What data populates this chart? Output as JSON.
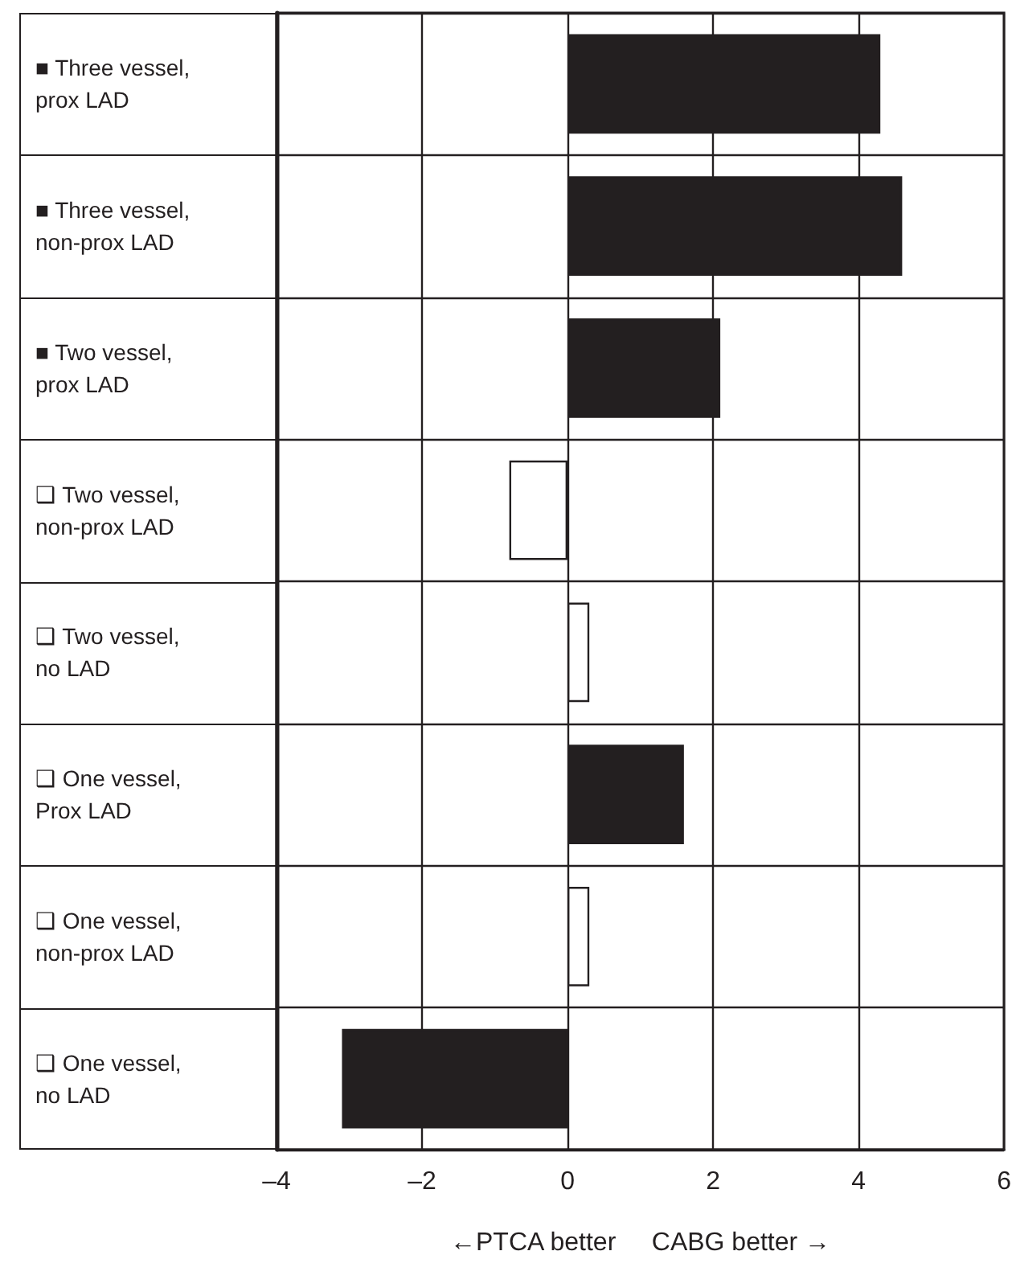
{
  "chart_data": {
    "type": "bar",
    "orientation": "horizontal",
    "xlabel": "←PTCA better     CABG better →",
    "categories": [
      "■ Three vessel,\nprox LAD",
      "■ Three vessel,\nnon-prox LAD",
      "■ Two vessel,\nprox LAD",
      "❑ Two vessel,\nnon-prox LAD",
      "❑ Two vessel,\nno LAD",
      "❑ One vessel,\nProx LAD",
      "❑ One vessel,\nnon-prox LAD",
      "❑ One vessel,\nno LAD"
    ],
    "values": [
      4.3,
      4.6,
      2.1,
      -0.8,
      0.3,
      1.6,
      0.3,
      -3.1
    ],
    "colors": [
      "#231f20",
      "#231f20",
      "#231f20",
      "#ffffff",
      "#ffffff",
      "#231f20",
      "#ffffff",
      "#231f20"
    ],
    "xlim": [
      -4,
      6
    ],
    "xticks": [
      {
        "value": -4,
        "label": "–4"
      },
      {
        "value": -2,
        "label": "–2"
      },
      0,
      2,
      4,
      6
    ],
    "grid": true
  }
}
